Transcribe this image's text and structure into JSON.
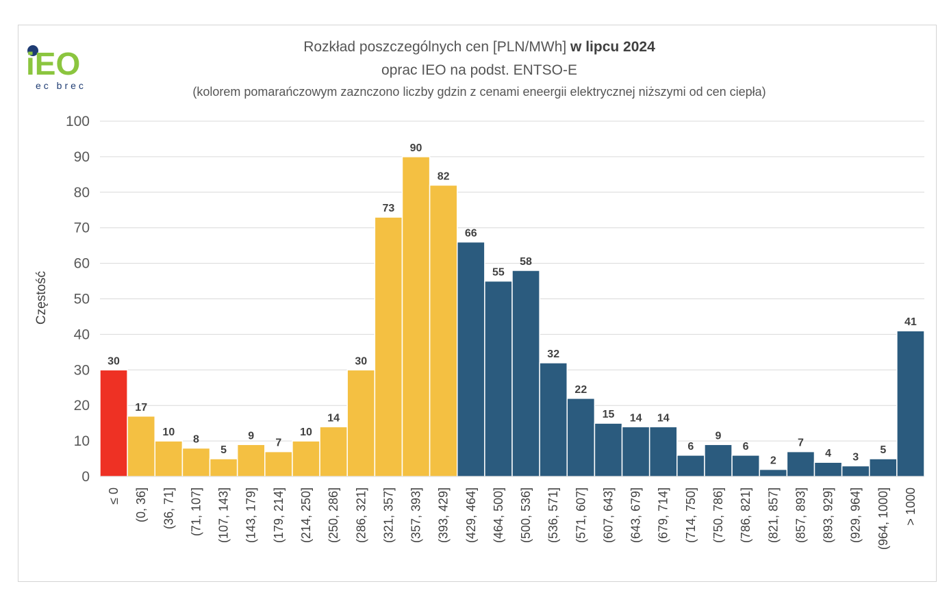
{
  "logo": {
    "brand": "iEO",
    "tagline": "ec brec"
  },
  "chart_data": {
    "type": "bar",
    "title_part1": "Rozkład poszczególnych cen [PLN/MWh] ",
    "title_part2": "w lipcu 2024",
    "subtitle": "oprac IEO na podst. ENTSO-E",
    "note": "(kolorem pomarańczowym zaznczono liczby gdzin z cenami eneergii elektrycznej niższymi od cen ciepła)",
    "xlabel": "",
    "ylabel": "Częstość",
    "ylim": [
      0,
      100
    ],
    "yticks": [
      0,
      10,
      20,
      30,
      40,
      50,
      60,
      70,
      80,
      90,
      100
    ],
    "grid": true,
    "categories": [
      "≤ 0",
      "(0, 36]",
      "(36, 71]",
      "(71, 107]",
      "(107, 143]",
      "(143, 179]",
      "(179, 214]",
      "(214, 250]",
      "(250, 286]",
      "(286, 321]",
      "(321, 357]",
      "(357, 393]",
      "(393, 429]",
      "(429, 464]",
      "(464, 500]",
      "(500, 536]",
      "(536, 571]",
      "(571, 607]",
      "(607, 643]",
      "(643, 679]",
      "(679, 714]",
      "(714, 750]",
      "(750, 786]",
      "(786, 821]",
      "(821, 857]",
      "(857, 893]",
      "(893, 929]",
      "(929, 964]",
      "(964, 1000]",
      "> 1000"
    ],
    "values": [
      30,
      17,
      10,
      8,
      5,
      9,
      7,
      10,
      14,
      30,
      73,
      90,
      82,
      66,
      55,
      58,
      32,
      22,
      15,
      14,
      14,
      6,
      9,
      6,
      2,
      7,
      4,
      3,
      5,
      41
    ],
    "bar_colors": [
      "#ee3124",
      "#f4c042",
      "#f4c042",
      "#f4c042",
      "#f4c042",
      "#f4c042",
      "#f4c042",
      "#f4c042",
      "#f4c042",
      "#f4c042",
      "#f4c042",
      "#f4c042",
      "#f4c042",
      "#2b5b7e",
      "#2b5b7e",
      "#2b5b7e",
      "#2b5b7e",
      "#2b5b7e",
      "#2b5b7e",
      "#2b5b7e",
      "#2b5b7e",
      "#2b5b7e",
      "#2b5b7e",
      "#2b5b7e",
      "#2b5b7e",
      "#2b5b7e",
      "#2b5b7e",
      "#2b5b7e",
      "#2b5b7e",
      "#2b5b7e"
    ],
    "colors": {
      "negative": "#ee3124",
      "below_heat_price": "#f4c042",
      "above": "#2b5b7e",
      "logo_green": "#8bc53f",
      "logo_navy": "#1f3c73"
    }
  }
}
